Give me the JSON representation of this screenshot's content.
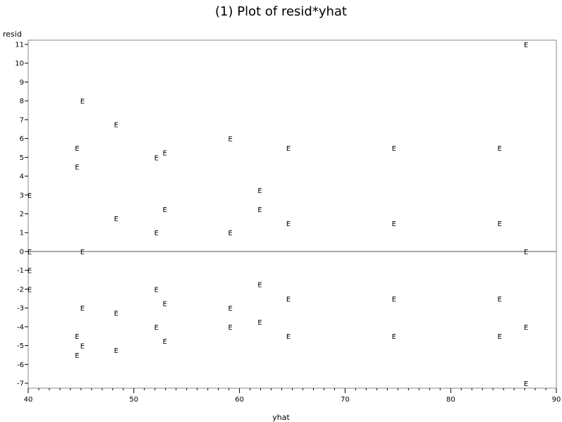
{
  "chart_data": {
    "type": "scatter",
    "title": "(1) Plot of resid*yhat",
    "xlabel": "yhat",
    "ylabel": "resid",
    "xlim": [
      40,
      90
    ],
    "ylim": [
      -7,
      11
    ],
    "x_ticks": [
      "40",
      "50",
      "60",
      "70",
      "80",
      "90"
    ],
    "x_tick_values": [
      40,
      50,
      60,
      70,
      80,
      90
    ],
    "y_ticks": [
      "11",
      "10",
      "9",
      "8",
      "7",
      "6",
      "5",
      "4",
      "3",
      "2",
      "1",
      "0",
      "-1",
      "-2",
      "-3",
      "-4",
      "-5",
      "-6",
      "-7"
    ],
    "y_tick_values": [
      11,
      10,
      9,
      8,
      7,
      6,
      5,
      4,
      3,
      2,
      1,
      0,
      -1,
      -2,
      -3,
      -4,
      -5,
      -6,
      -7
    ],
    "reference_line_y": 0,
    "marker_symbol": "E",
    "points": [
      {
        "x": 40,
        "y": 3
      },
      {
        "x": 40,
        "y": 0
      },
      {
        "x": 40,
        "y": -1
      },
      {
        "x": 40,
        "y": -2
      },
      {
        "x": 44.5,
        "y": 5.5
      },
      {
        "x": 44.5,
        "y": 4.5
      },
      {
        "x": 44.5,
        "y": -4.5
      },
      {
        "x": 44.5,
        "y": -5.5
      },
      {
        "x": 45,
        "y": 8
      },
      {
        "x": 45,
        "y": 0
      },
      {
        "x": 45,
        "y": -3
      },
      {
        "x": 45,
        "y": -5
      },
      {
        "x": 48.2,
        "y": 6.75
      },
      {
        "x": 48.2,
        "y": 1.75
      },
      {
        "x": 48.2,
        "y": -3.25
      },
      {
        "x": 48.2,
        "y": -5.25
      },
      {
        "x": 52,
        "y": 5
      },
      {
        "x": 52,
        "y": 1
      },
      {
        "x": 52,
        "y": -2
      },
      {
        "x": 52,
        "y": -4
      },
      {
        "x": 52.8,
        "y": 5.25
      },
      {
        "x": 52.8,
        "y": 2.25
      },
      {
        "x": 52.8,
        "y": -2.75
      },
      {
        "x": 52.8,
        "y": -4.75
      },
      {
        "x": 59,
        "y": 6
      },
      {
        "x": 59,
        "y": 1
      },
      {
        "x": 59,
        "y": -3
      },
      {
        "x": 59,
        "y": -4
      },
      {
        "x": 61.8,
        "y": 3.25
      },
      {
        "x": 61.8,
        "y": 2.25
      },
      {
        "x": 61.8,
        "y": -1.75
      },
      {
        "x": 61.8,
        "y": -3.75
      },
      {
        "x": 64.5,
        "y": 5.5
      },
      {
        "x": 64.5,
        "y": 1.5
      },
      {
        "x": 64.5,
        "y": -2.5
      },
      {
        "x": 64.5,
        "y": -4.5
      },
      {
        "x": 74.5,
        "y": 5.5
      },
      {
        "x": 74.5,
        "y": 1.5
      },
      {
        "x": 74.5,
        "y": -2.5
      },
      {
        "x": 74.5,
        "y": -4.5
      },
      {
        "x": 84.5,
        "y": 5.5
      },
      {
        "x": 84.5,
        "y": 1.5
      },
      {
        "x": 84.5,
        "y": -2.5
      },
      {
        "x": 84.5,
        "y": -4.5
      },
      {
        "x": 87,
        "y": 11
      },
      {
        "x": 87,
        "y": 0
      },
      {
        "x": 87,
        "y": -4
      },
      {
        "x": 87,
        "y": -7
      }
    ]
  }
}
